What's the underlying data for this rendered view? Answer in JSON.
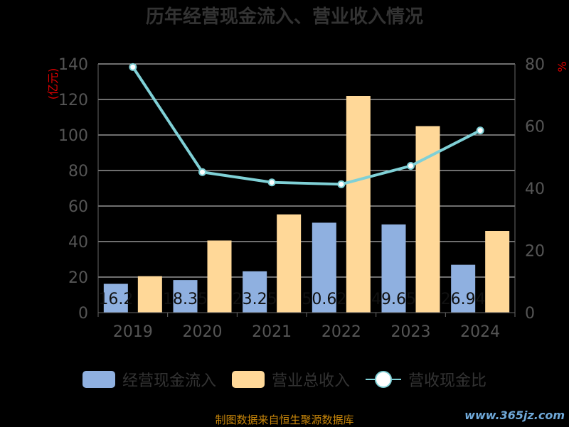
{
  "chart_data": {
    "type": "bar",
    "title": "历年经营现金流入、营业收入情况",
    "y_left_unit": "亿元",
    "y_right_unit": "%",
    "categories": [
      "2019",
      "2020",
      "2021",
      "2022",
      "2023",
      "2024"
    ],
    "series": [
      {
        "name": "经营现金流入",
        "type": "bar",
        "axis": "left",
        "color": "#8fb0e0",
        "values": [
          16.2,
          18.35,
          23.25,
          50.62,
          49.65,
          26.94
        ],
        "labels": [
          "16.2",
          "18.35",
          "23.25",
          "50.62",
          "49.65",
          "26.94"
        ]
      },
      {
        "name": "营业总收入",
        "type": "bar",
        "axis": "left",
        "color": "#ffd898",
        "values": [
          20.5,
          40.6,
          55.3,
          122.0,
          105.0,
          46.0
        ]
      },
      {
        "name": "营收现金比",
        "type": "line",
        "axis": "right",
        "color": "#7fd0d6",
        "values": [
          79.0,
          45.2,
          41.9,
          41.3,
          47.2,
          58.6
        ]
      }
    ],
    "ylim_left": [
      0,
      140
    ],
    "yticks_left": [
      0,
      20,
      40,
      60,
      80,
      100,
      120,
      140
    ],
    "ylim_right": [
      0,
      80
    ],
    "yticks_right": [
      0,
      20,
      40,
      60,
      80
    ],
    "grid": true,
    "legend_position": "bottom"
  },
  "legend": {
    "items": [
      "经营现金流入",
      "营业总收入",
      "营收现金比"
    ]
  },
  "source_text": "制图数据来自恒生聚源数据库",
  "watermark": "www.365jz.com"
}
